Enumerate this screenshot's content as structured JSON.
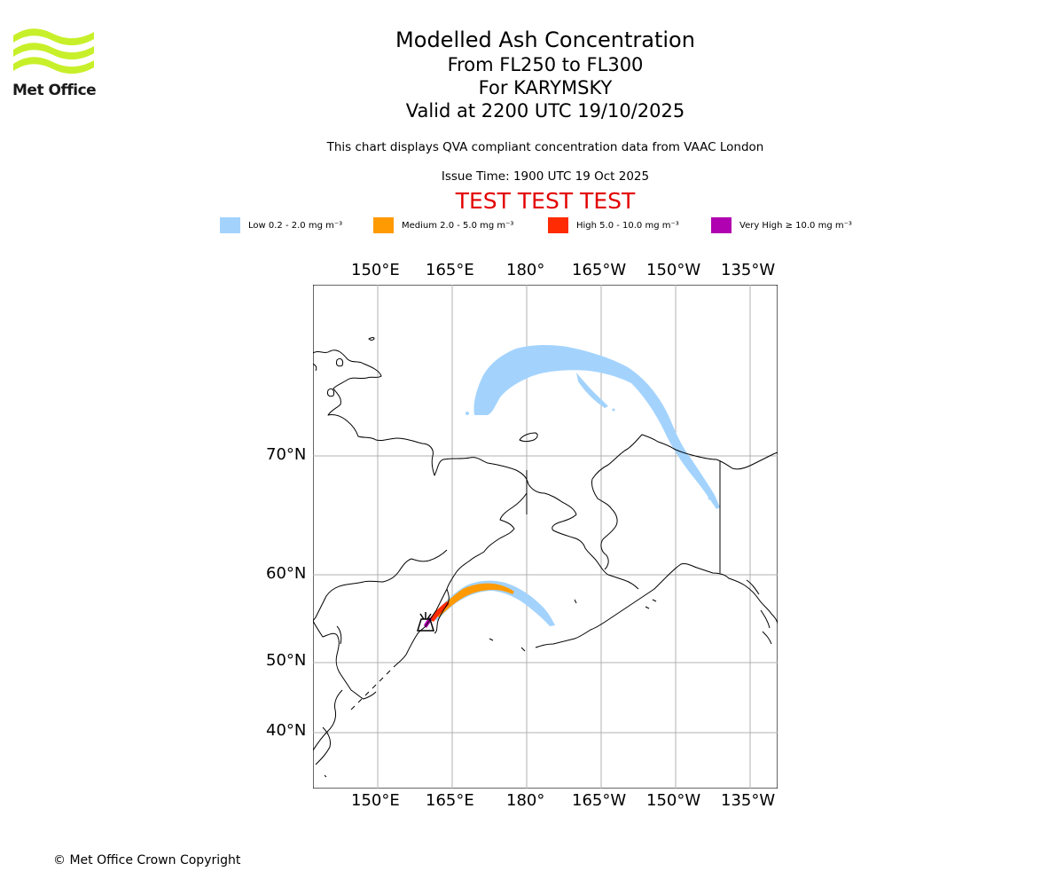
{
  "header": {
    "logo_text": "Met Office",
    "title": "Modelled Ash Concentration",
    "levels": "From FL250 to FL300",
    "volcano": "For KARYMSKY",
    "valid": "Valid at 2200 UTC 19/10/2025",
    "description": "This chart displays QVA compliant concentration data from VAAC London",
    "issue_time": "Issue Time: 1900 UTC 19 Oct 2025",
    "test_banner": "TEST TEST TEST"
  },
  "legend": [
    {
      "label": "Low 0.2 - 2.0 mg m⁻³",
      "color": "#a3d3fd"
    },
    {
      "label": "Medium 2.0 - 5.0 mg m⁻³",
      "color": "#ff9a02"
    },
    {
      "label": "High 5.0 - 10.0 mg m⁻³",
      "color": "#ff2b02"
    },
    {
      "label": "Very High ≥ 10.0 mg m⁻³",
      "color": "#b002b0"
    }
  ],
  "map": {
    "lon_labels": [
      "150°E",
      "165°E",
      "180°",
      "165°W",
      "150°W",
      "135°W"
    ],
    "lat_labels": [
      "70°N",
      "60°N",
      "50°N",
      "40°N"
    ],
    "volcano_marker_icon": "volcano-icon"
  },
  "footer": {
    "copyright": "© Met Office Crown Copyright"
  }
}
